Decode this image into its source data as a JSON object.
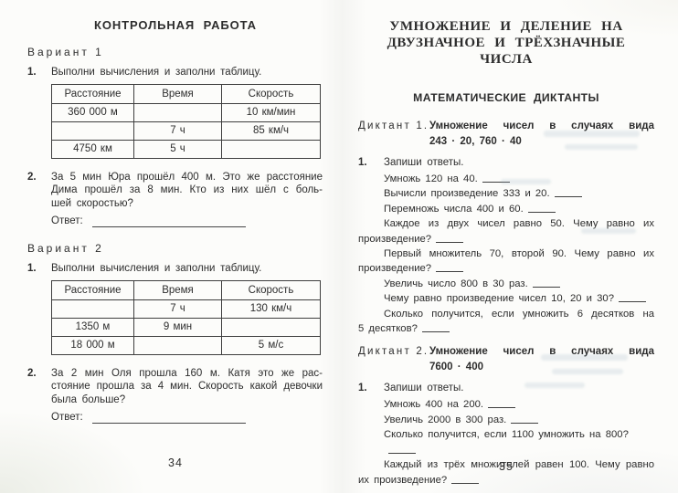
{
  "left_page": {
    "title": "КОНТРОЛЬНАЯ РАБОТА",
    "page_number": "34",
    "answer_label": "Ответ:",
    "table_headers": [
      "Расстояние",
      "Время",
      "Скорость"
    ],
    "variants": [
      {
        "heading": "Вариант 1",
        "task1_number": "1.",
        "task1_text": "Выполни вычисления и заполни таблицу.",
        "table_rows": [
          [
            "360 000 м",
            "",
            "10 км/мин"
          ],
          [
            "",
            "7 ч",
            "85 км/ч"
          ],
          [
            "4750 км",
            "5 ч",
            ""
          ]
        ],
        "task2_number": "2.",
        "task2_lines": [
          {
            "text": "За 5 мин Юра прошёл 400 м. Это же расстояние",
            "justify": true
          },
          {
            "text": "Дима прошёл за 8 мин. Кто из них шёл с боль-",
            "justify": true
          },
          {
            "text": "шей скоростью?",
            "justify": false
          }
        ]
      },
      {
        "heading": "Вариант 2",
        "task1_number": "1.",
        "task1_text": "Выполни вычисления и заполни таблицу.",
        "table_rows": [
          [
            "",
            "7 ч",
            "130 км/ч"
          ],
          [
            "1350 м",
            "9 мин",
            ""
          ],
          [
            "18 000 м",
            "",
            "5 м/с"
          ]
        ],
        "task2_number": "2.",
        "task2_lines": [
          {
            "text": "За 2 мин Оля прошла 160 м. Катя это же рас-",
            "justify": true
          },
          {
            "text": "стояние прошла за 4 мин. Скорость какой девочки",
            "justify": true
          },
          {
            "text": "была больше?",
            "justify": false
          }
        ]
      }
    ]
  },
  "right_page": {
    "title_lines": [
      "УМНОЖЕНИЕ И ДЕЛЕНИЕ НА",
      "ДВУЗНАЧНОЕ И ТРЁХЗНАЧНЫЕ ЧИСЛА"
    ],
    "subtitle": "МАТЕМАТИЧЕСКИЕ ДИКТАНТЫ",
    "page_number": "35",
    "dictations": [
      {
        "label": "Диктант 1.",
        "title_line1": "Умножение чисел в случаях вида",
        "title_line2": "243 · 20, 760 · 40",
        "task_number": "1.",
        "intro": "Запиши ответы.",
        "lines": [
          {
            "text": "Умножь 120 на 40.",
            "indent": true,
            "blank": true
          },
          {
            "text": "Вычисли произведение 333 и 20.",
            "indent": true,
            "blank": true
          },
          {
            "text": "Перемножь числа 400 и 60.",
            "indent": true,
            "blank": true
          },
          {
            "text": "Каждое из двух чисел равно 50. Чему равно их",
            "indent": true,
            "justify": true
          },
          {
            "text": "произведение?",
            "blank": true
          },
          {
            "text": "Первый множитель 70, второй 90. Чему равно их",
            "indent": true,
            "justify": true
          },
          {
            "text": "произведение?",
            "blank": true
          },
          {
            "text": "Увеличь число 800 в 30 раз.",
            "indent": true,
            "blank": true
          },
          {
            "text": "Чему равно произведение чисел 10, 20 и 30?",
            "indent": true,
            "blank": true
          },
          {
            "text": "Сколько получится, если умножить 6 десятков на",
            "indent": true,
            "justify": true
          },
          {
            "text": "5 десятков?",
            "blank": true
          }
        ]
      },
      {
        "label": "Диктант 2.",
        "title_line1": "Умножение чисел в случаях вида",
        "title_line2": "7600 · 400",
        "task_number": "1.",
        "intro": "Запиши ответы.",
        "lines": [
          {
            "text": "Умножь 400 на 200.",
            "indent": true,
            "blank": true
          },
          {
            "text": "Увеличь 2000 в 300 раз.",
            "indent": true,
            "blank": true
          },
          {
            "text": "Сколько получится, если 1100 умножить на 800?",
            "indent": true,
            "blank": true
          },
          {
            "text": "Каждый из трёх множителей равен 100. Чему равно",
            "indent": true,
            "justify": true
          },
          {
            "text": "их произведение?",
            "blank": true
          }
        ]
      }
    ]
  }
}
